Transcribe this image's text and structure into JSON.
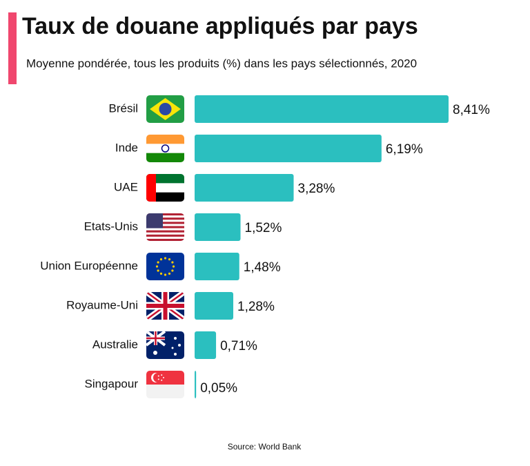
{
  "chart_data": {
    "type": "bar",
    "title": "Taux de douane appliqués par pays",
    "subtitle": "Moyenne pondérée, tous les produits (%) dans les pays sélectionnés, 2020",
    "categories": [
      "Brésil",
      "Inde",
      "UAE",
      "Etats-Unis",
      "Union Européenne",
      "Royaume-Uni",
      "Australie",
      "Singapour"
    ],
    "values": [
      8.41,
      6.19,
      3.28,
      1.52,
      1.48,
      1.28,
      0.71,
      0.05
    ],
    "value_labels": [
      "8,41%",
      "6,19%",
      "3,28%",
      "1,52%",
      "1,48%",
      "1,28%",
      "0,71%",
      "0,05%"
    ],
    "color": "#2bbfbf",
    "source": "Source: World Bank"
  }
}
